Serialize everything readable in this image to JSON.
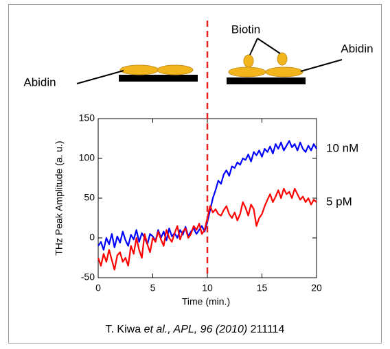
{
  "chart_data": {
    "type": "line",
    "xlabel": "Time (min.)",
    "ylabel": "THz Peak Amplitude (a. u.)",
    "xlim": [
      0,
      20
    ],
    "xticks": [
      0,
      5,
      10,
      15,
      20
    ],
    "ylim": [
      -50,
      150
    ],
    "yticks": [
      -50,
      0,
      50,
      100,
      150
    ],
    "vline": 10,
    "vline_color": "#e8201e",
    "x": [
      0,
      0.25,
      0.5,
      0.75,
      1,
      1.25,
      1.5,
      1.75,
      2,
      2.25,
      2.5,
      2.75,
      3,
      3.25,
      3.5,
      3.75,
      4,
      4.25,
      4.5,
      4.75,
      5,
      5.25,
      5.5,
      5.75,
      6,
      6.25,
      6.5,
      6.75,
      7,
      7.25,
      7.5,
      7.75,
      8,
      8.25,
      8.5,
      8.75,
      9,
      9.25,
      9.5,
      9.75,
      10,
      10.25,
      10.5,
      10.75,
      11,
      11.25,
      11.5,
      11.75,
      12,
      12.25,
      12.5,
      12.75,
      13,
      13.25,
      13.5,
      13.75,
      14,
      14.25,
      14.5,
      14.75,
      15,
      15.25,
      15.5,
      15.75,
      16,
      16.25,
      16.5,
      16.75,
      17,
      17.25,
      17.5,
      17.75,
      18,
      18.25,
      18.5,
      18.75,
      19,
      19.25,
      19.5,
      19.75,
      20
    ],
    "series": [
      {
        "name": "10 nM",
        "color": "#0000ff",
        "values": [
          -10,
          -5,
          -15,
          0,
          -8,
          5,
          -12,
          2,
          -6,
          8,
          -3,
          -10,
          4,
          -2,
          10,
          -5,
          6,
          0,
          -8,
          5,
          2,
          -4,
          10,
          0,
          8,
          -3,
          12,
          2,
          6,
          0,
          10,
          4,
          14,
          2,
          8,
          12,
          5,
          10,
          15,
          8,
          20,
          35,
          50,
          60,
          72,
          68,
          80,
          85,
          78,
          90,
          88,
          95,
          92,
          100,
          98,
          105,
          96,
          108,
          104,
          110,
          102,
          112,
          108,
          115,
          106,
          118,
          112,
          120,
          110,
          116,
          122,
          114,
          118,
          110,
          120,
          112,
          108,
          116,
          110,
          118,
          112
        ]
      },
      {
        "name": "5 pM",
        "color": "#ff0000",
        "values": [
          -25,
          -35,
          -20,
          -30,
          -15,
          -28,
          -40,
          -22,
          -18,
          -30,
          -25,
          -35,
          -10,
          -20,
          0,
          -15,
          -25,
          5,
          -8,
          -18,
          0,
          -5,
          8,
          -2,
          -10,
          10,
          0,
          -5,
          6,
          15,
          -2,
          8,
          12,
          0,
          5,
          15,
          10,
          18,
          5,
          10,
          25,
          40,
          32,
          36,
          30,
          28,
          35,
          40,
          30,
          25,
          32,
          22,
          30,
          45,
          38,
          28,
          42,
          36,
          15,
          25,
          30,
          40,
          48,
          55,
          45,
          52,
          60,
          50,
          62,
          55,
          58,
          50,
          62,
          55,
          48,
          52,
          45,
          50,
          42,
          48,
          45
        ]
      }
    ],
    "annotations": {
      "left_abidin": "Abidin",
      "biotin": "Biotin",
      "right_abidin": "Abidin"
    },
    "citation": {
      "author": "T. Kiwa",
      "journal": "et al., APL, 96 (2010)",
      "number": "211114"
    }
  }
}
